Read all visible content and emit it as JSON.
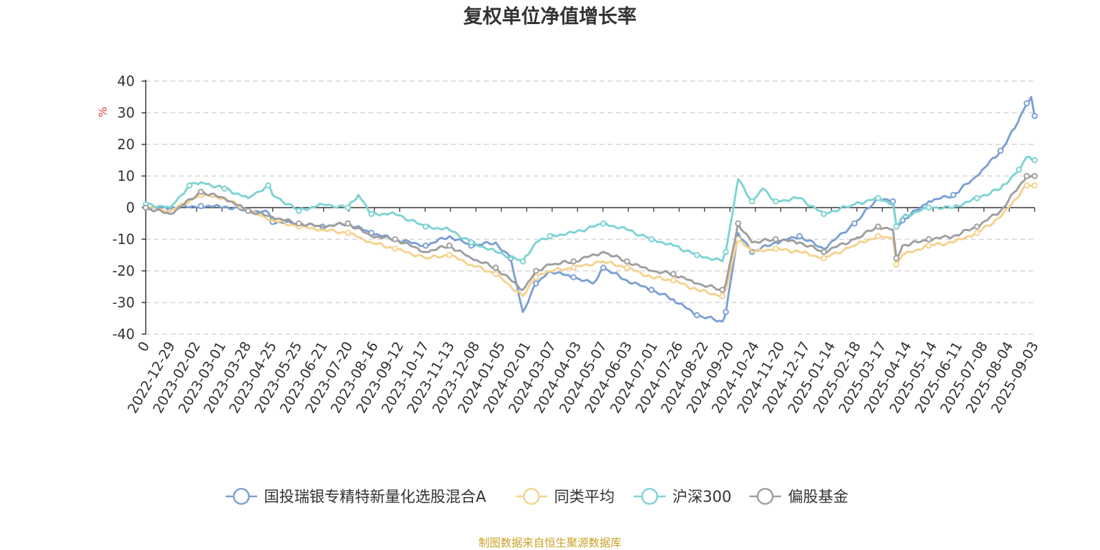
{
  "chart_data": {
    "type": "line",
    "title": "复权单位净值增长率",
    "y_unit": "%",
    "ylim": [
      -40,
      40
    ],
    "y_ticks": [
      "40",
      "30",
      "20",
      "10",
      "0",
      "-10",
      "-20",
      "-30",
      "-40"
    ],
    "x_start": "2022-12-01",
    "x_end": "2025-09-12",
    "x_ticks": [
      "0",
      "2022-12-29",
      "2023-02-02",
      "2023-03-01",
      "2023-03-28",
      "2023-04-25",
      "2023-05-25",
      "2023-06-21",
      "2023-07-20",
      "2023-08-16",
      "2023-09-12",
      "2023-10-17",
      "2023-11-13",
      "2023-12-08",
      "2024-01-05",
      "2024-02-01",
      "2024-03-07",
      "2024-04-03",
      "2024-05-07",
      "2024-06-03",
      "2024-07-01",
      "2024-07-26",
      "2024-08-22",
      "2024-09-20",
      "2024-10-24",
      "2024-11-20",
      "2024-12-17",
      "2025-01-14",
      "2025-02-18",
      "2025-03-17",
      "2025-04-14",
      "2025-05-14",
      "2025-06-11",
      "2025-07-08",
      "2025-08-04",
      "2025-09-03"
    ],
    "grid": "dashed horizontal",
    "legend_position": "bottom",
    "series": [
      {
        "name": "国投瑞银专精特新量化选股混合A",
        "color": "#7b9fd4",
        "points": [
          [
            "2022-12-01",
            0
          ],
          [
            "2022-12-29",
            0
          ],
          [
            "2023-02-02",
            0.5
          ],
          [
            "2023-03-01",
            0.3
          ],
          [
            "2023-03-28",
            -1
          ],
          [
            "2023-04-20",
            -1.5
          ],
          [
            "2023-04-25",
            -4.5
          ],
          [
            "2023-05-25",
            -5
          ],
          [
            "2023-06-21",
            -6
          ],
          [
            "2023-07-20",
            -5
          ],
          [
            "2023-08-16",
            -8
          ],
          [
            "2023-09-12",
            -10
          ],
          [
            "2023-10-17",
            -12
          ],
          [
            "2023-11-13",
            -9
          ],
          [
            "2023-12-08",
            -12
          ],
          [
            "2024-01-05",
            -11
          ],
          [
            "2024-01-22",
            -16
          ],
          [
            "2024-02-05",
            -33
          ],
          [
            "2024-02-20",
            -24
          ],
          [
            "2024-03-07",
            -20
          ],
          [
            "2024-04-03",
            -22
          ],
          [
            "2024-04-25",
            -24
          ],
          [
            "2024-05-07",
            -19
          ],
          [
            "2024-06-03",
            -23
          ],
          [
            "2024-07-01",
            -26
          ],
          [
            "2024-07-26",
            -29
          ],
          [
            "2024-08-22",
            -34
          ],
          [
            "2024-09-20",
            -36
          ],
          [
            "2024-09-24",
            -33
          ],
          [
            "2024-10-08",
            -8
          ],
          [
            "2024-10-24",
            -14
          ],
          [
            "2024-11-20",
            -11
          ],
          [
            "2024-12-17",
            -9
          ],
          [
            "2025-01-14",
            -13
          ],
          [
            "2025-02-18",
            -5
          ],
          [
            "2025-03-17",
            3
          ],
          [
            "2025-04-03",
            2
          ],
          [
            "2025-04-07",
            -6
          ],
          [
            "2025-04-14",
            -4
          ],
          [
            "2025-05-14",
            2
          ],
          [
            "2025-06-11",
            4
          ],
          [
            "2025-07-08",
            10
          ],
          [
            "2025-08-04",
            18
          ],
          [
            "2025-08-20",
            25
          ],
          [
            "2025-09-03",
            33
          ],
          [
            "2025-09-08",
            35
          ],
          [
            "2025-09-12",
            29
          ]
        ]
      },
      {
        "name": "同类平均",
        "color": "#f5d28e",
        "points": [
          [
            "2022-12-01",
            0
          ],
          [
            "2022-12-29",
            -1
          ],
          [
            "2023-02-02",
            4
          ],
          [
            "2023-03-01",
            3
          ],
          [
            "2023-03-28",
            -1
          ],
          [
            "2023-04-25",
            -4
          ],
          [
            "2023-05-25",
            -6
          ],
          [
            "2023-06-21",
            -7
          ],
          [
            "2023-07-20",
            -8
          ],
          [
            "2023-08-16",
            -11
          ],
          [
            "2023-09-12",
            -13
          ],
          [
            "2023-10-17",
            -16
          ],
          [
            "2023-11-13",
            -15
          ],
          [
            "2023-12-08",
            -18
          ],
          [
            "2024-01-05",
            -21
          ],
          [
            "2024-02-05",
            -28
          ],
          [
            "2024-02-20",
            -22
          ],
          [
            "2024-03-07",
            -20
          ],
          [
            "2024-04-03",
            -19
          ],
          [
            "2024-05-07",
            -17
          ],
          [
            "2024-06-03",
            -19
          ],
          [
            "2024-07-01",
            -22
          ],
          [
            "2024-07-26",
            -23
          ],
          [
            "2024-08-22",
            -26
          ],
          [
            "2024-09-20",
            -28
          ],
          [
            "2024-09-24",
            -26
          ],
          [
            "2024-10-08",
            -10
          ],
          [
            "2024-10-24",
            -14
          ],
          [
            "2024-11-20",
            -13
          ],
          [
            "2024-12-17",
            -14
          ],
          [
            "2025-01-14",
            -16
          ],
          [
            "2025-02-18",
            -12
          ],
          [
            "2025-03-17",
            -9
          ],
          [
            "2025-04-03",
            -10
          ],
          [
            "2025-04-07",
            -18
          ],
          [
            "2025-04-14",
            -15
          ],
          [
            "2025-05-14",
            -12
          ],
          [
            "2025-06-11",
            -11
          ],
          [
            "2025-07-08",
            -8
          ],
          [
            "2025-08-04",
            -3
          ],
          [
            "2025-09-03",
            7
          ],
          [
            "2025-09-12",
            7
          ]
        ]
      },
      {
        "name": "沪深300",
        "color": "#7dd3d3",
        "points": [
          [
            "2022-12-01",
            1
          ],
          [
            "2022-12-29",
            0
          ],
          [
            "2023-01-20",
            7
          ],
          [
            "2023-02-02",
            8
          ],
          [
            "2023-03-01",
            6
          ],
          [
            "2023-03-28",
            3
          ],
          [
            "2023-04-20",
            7
          ],
          [
            "2023-04-25",
            4
          ],
          [
            "2023-05-25",
            -1
          ],
          [
            "2023-06-21",
            1
          ],
          [
            "2023-07-20",
            0
          ],
          [
            "2023-08-01",
            4
          ],
          [
            "2023-08-16",
            -2
          ],
          [
            "2023-09-12",
            -2
          ],
          [
            "2023-10-17",
            -6
          ],
          [
            "2023-11-13",
            -7
          ],
          [
            "2023-12-08",
            -11
          ],
          [
            "2024-01-05",
            -14
          ],
          [
            "2024-02-05",
            -17
          ],
          [
            "2024-02-20",
            -11
          ],
          [
            "2024-03-07",
            -9
          ],
          [
            "2024-04-03",
            -8
          ],
          [
            "2024-05-07",
            -5
          ],
          [
            "2024-06-03",
            -7
          ],
          [
            "2024-07-01",
            -10
          ],
          [
            "2024-07-26",
            -12
          ],
          [
            "2024-08-22",
            -15
          ],
          [
            "2024-09-20",
            -17
          ],
          [
            "2024-09-24",
            -14
          ],
          [
            "2024-10-08",
            9
          ],
          [
            "2024-10-24",
            2
          ],
          [
            "2024-11-05",
            6
          ],
          [
            "2024-11-20",
            2
          ],
          [
            "2024-12-17",
            3
          ],
          [
            "2025-01-14",
            -2
          ],
          [
            "2025-02-18",
            1
          ],
          [
            "2025-03-17",
            3
          ],
          [
            "2025-04-03",
            1
          ],
          [
            "2025-04-07",
            -6
          ],
          [
            "2025-04-14",
            -3
          ],
          [
            "2025-05-14",
            0
          ],
          [
            "2025-06-11",
            0
          ],
          [
            "2025-07-08",
            3
          ],
          [
            "2025-08-04",
            6
          ],
          [
            "2025-08-25",
            12
          ],
          [
            "2025-09-03",
            16
          ],
          [
            "2025-09-12",
            15
          ]
        ]
      },
      {
        "name": "偏股基金",
        "color": "#9e9e9e",
        "points": [
          [
            "2022-12-01",
            0
          ],
          [
            "2022-12-29",
            -2
          ],
          [
            "2023-02-02",
            5
          ],
          [
            "2023-03-01",
            3
          ],
          [
            "2023-03-28",
            -1
          ],
          [
            "2023-04-25",
            -3
          ],
          [
            "2023-05-25",
            -5
          ],
          [
            "2023-06-21",
            -6
          ],
          [
            "2023-07-20",
            -5
          ],
          [
            "2023-08-16",
            -9
          ],
          [
            "2023-09-12",
            -10
          ],
          [
            "2023-10-17",
            -14
          ],
          [
            "2023-11-13",
            -12
          ],
          [
            "2023-12-08",
            -16
          ],
          [
            "2024-01-05",
            -19
          ],
          [
            "2024-02-05",
            -26
          ],
          [
            "2024-02-20",
            -20
          ],
          [
            "2024-03-07",
            -18
          ],
          [
            "2024-04-03",
            -17
          ],
          [
            "2024-05-07",
            -14
          ],
          [
            "2024-06-03",
            -17
          ],
          [
            "2024-07-01",
            -20
          ],
          [
            "2024-07-26",
            -21
          ],
          [
            "2024-08-22",
            -24
          ],
          [
            "2024-09-20",
            -26
          ],
          [
            "2024-09-24",
            -24
          ],
          [
            "2024-10-08",
            -5
          ],
          [
            "2024-10-24",
            -11
          ],
          [
            "2024-11-20",
            -10
          ],
          [
            "2024-12-17",
            -11
          ],
          [
            "2025-01-14",
            -14
          ],
          [
            "2025-02-18",
            -10
          ],
          [
            "2025-03-17",
            -6
          ],
          [
            "2025-04-03",
            -7
          ],
          [
            "2025-04-07",
            -16
          ],
          [
            "2025-04-14",
            -12
          ],
          [
            "2025-05-14",
            -10
          ],
          [
            "2025-06-11",
            -9
          ],
          [
            "2025-07-08",
            -6
          ],
          [
            "2025-08-04",
            -1
          ],
          [
            "2025-09-03",
            10
          ],
          [
            "2025-09-12",
            10
          ]
        ]
      }
    ],
    "source": "制图数据来自恒生聚源数据库"
  }
}
